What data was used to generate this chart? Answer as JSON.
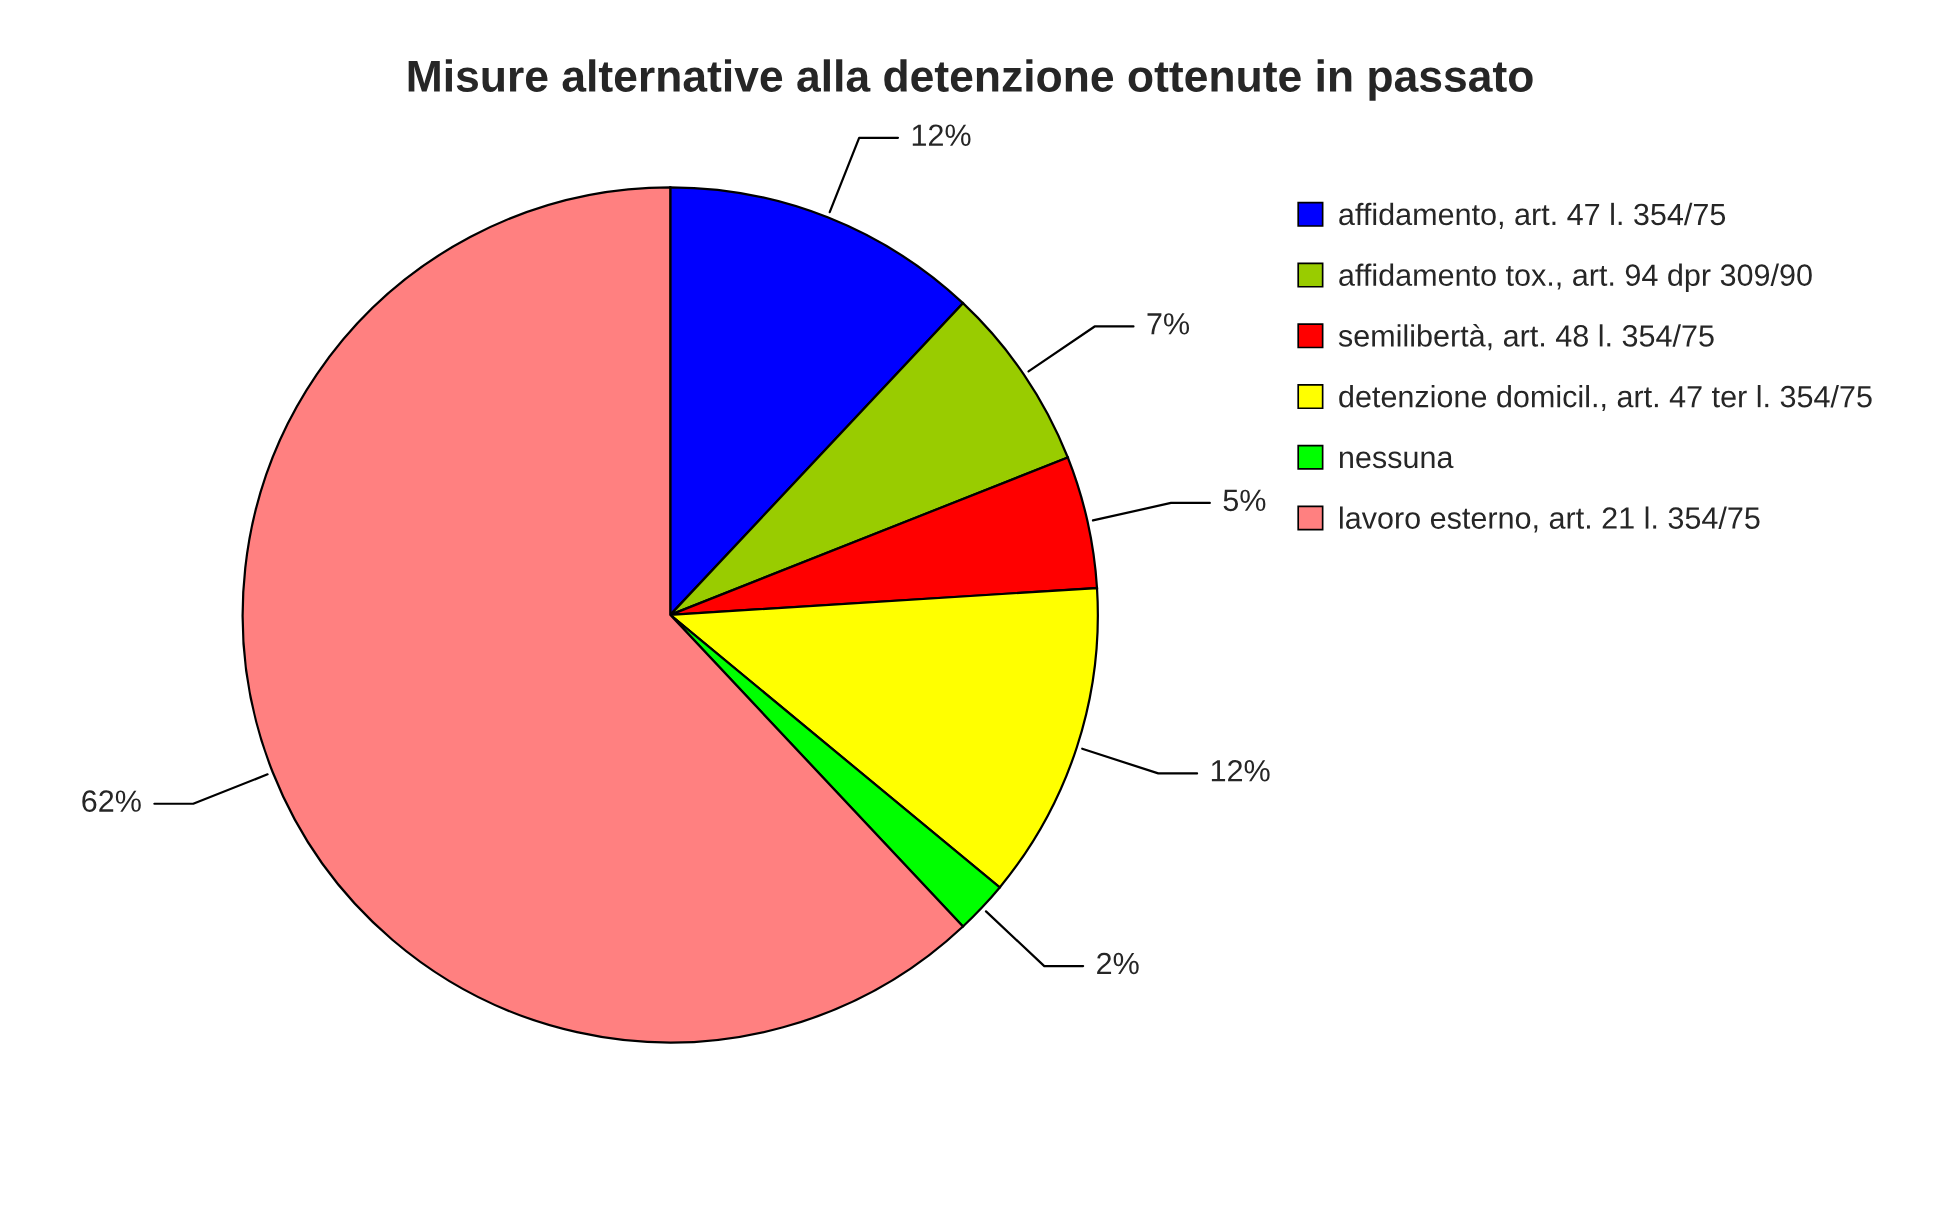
{
  "chart_data": {
    "type": "pie",
    "title": "Misure alternative alla detenzione ottenute in passato",
    "categories": [
      "affidamento, art. 47 l. 354/75",
      "affidamento tox., art. 94 dpr 309/90",
      "semilibertà, art. 48 l. 354/75",
      "detenzione domicil., art. 47 ter l. 354/75",
      "nessuna",
      "lavoro esterno, art. 21 l. 354/75"
    ],
    "values": [
      12,
      7,
      5,
      12,
      2,
      62
    ],
    "colors": [
      "#0000ff",
      "#99cc00",
      "#ff0000",
      "#ffff00",
      "#00ff00",
      "#ff8080"
    ],
    "value_labels": [
      "12%",
      "7%",
      "5%",
      "12%",
      "2%",
      "62%"
    ],
    "legend": "top right"
  }
}
